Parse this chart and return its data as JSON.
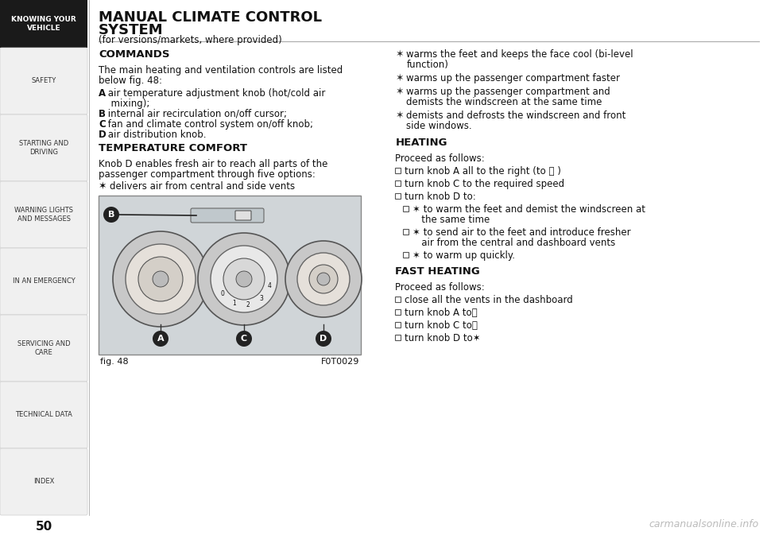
{
  "page_bg": "#ffffff",
  "sidebar_bg": "#f0f0f0",
  "sidebar_active_bg": "#1a1a1a",
  "sidebar_active_text": "#ffffff",
  "sidebar_text": "#333333",
  "sidebar_items": [
    {
      "label": "KNOWING YOUR\nVEHICLE",
      "active": true
    },
    {
      "label": "SAFETY",
      "active": false
    },
    {
      "label": "STARTING AND\nDRIVING",
      "active": false
    },
    {
      "label": "WARNING LIGHTS\nAND MESSAGES",
      "active": false
    },
    {
      "label": "IN AN EMERGENCY",
      "active": false
    },
    {
      "label": "SERVICING AND\nCARE",
      "active": false
    },
    {
      "label": "TECHNICAL DATA",
      "active": false
    },
    {
      "label": "INDEX",
      "active": false
    }
  ],
  "page_number": "50",
  "watermark": "carmanualsonline.info",
  "fig_label": "fig. 48",
  "fig_code": "F0T0029"
}
